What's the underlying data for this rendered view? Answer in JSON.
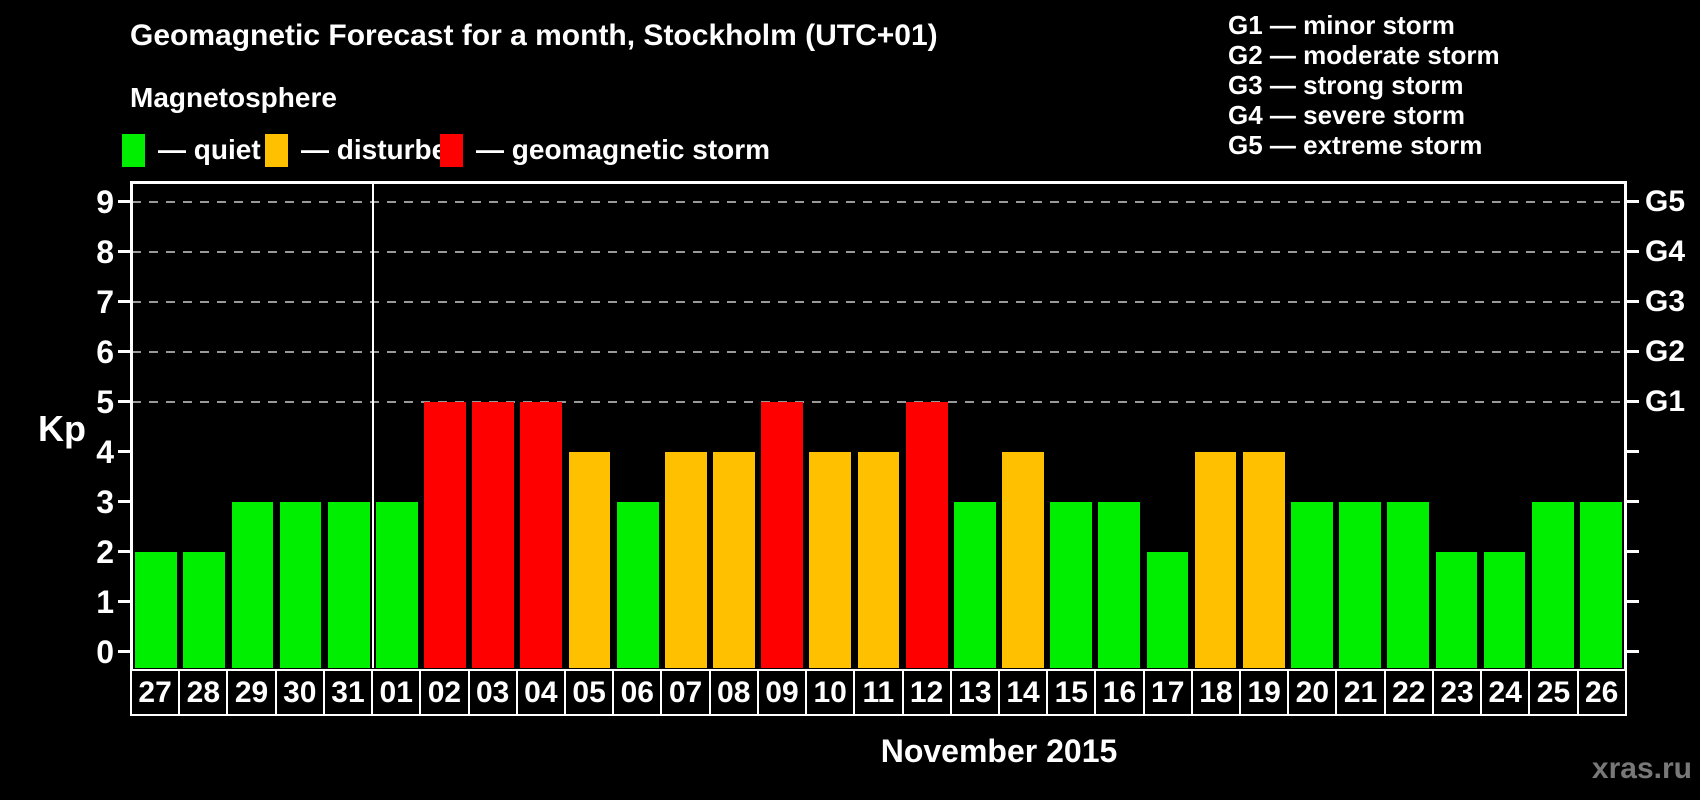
{
  "header": {
    "title": "Geomagnetic Forecast for a month, Stockholm (UTC+01)",
    "subtitle": "Magnetosphere"
  },
  "legend": {
    "items": [
      {
        "status": "quiet",
        "swatch_color": "#00EE00",
        "label": "— quiet"
      },
      {
        "status": "disturbed",
        "swatch_color": "#FFC000",
        "label": "— disturbed"
      },
      {
        "status": "storm",
        "swatch_color": "#FF0000",
        "label": "— geomagnetic storm"
      }
    ]
  },
  "g_scale_legend": [
    "G1 — minor storm",
    "G2 — moderate storm",
    "G3 — strong storm",
    "G4 — severe storm",
    "G5 — extreme storm"
  ],
  "watermark": "xras.ru",
  "chart_data": {
    "type": "bar",
    "title": "Geomagnetic Forecast for a month, Stockholm (UTC+01)",
    "xlabel": "November 2015",
    "ylabel": "Kp",
    "ylim": [
      0,
      9
    ],
    "yticks": [
      0,
      1,
      2,
      3,
      4,
      5,
      6,
      7,
      8,
      9
    ],
    "grid_values": [
      5,
      6,
      7,
      8,
      9
    ],
    "right_axis": [
      {
        "value": 5,
        "label": "G1"
      },
      {
        "value": 6,
        "label": "G2"
      },
      {
        "value": 7,
        "label": "G3"
      },
      {
        "value": 8,
        "label": "G4"
      },
      {
        "value": 9,
        "label": "G5"
      }
    ],
    "legend_position": "top",
    "grid": "dashed-horizontal",
    "month_boundary_index": 5,
    "categories": [
      "27",
      "28",
      "29",
      "30",
      "31",
      "01",
      "02",
      "03",
      "04",
      "05",
      "06",
      "07",
      "08",
      "09",
      "10",
      "11",
      "12",
      "13",
      "14",
      "15",
      "16",
      "17",
      "18",
      "19",
      "20",
      "21",
      "22",
      "23",
      "24",
      "25",
      "26"
    ],
    "values": [
      2,
      2,
      3,
      3,
      3,
      3,
      5,
      5,
      5,
      4,
      3,
      4,
      4,
      5,
      4,
      4,
      5,
      3,
      4,
      3,
      3,
      2,
      4,
      4,
      3,
      3,
      3,
      2,
      2,
      3,
      3
    ],
    "bars": [
      {
        "day": "27",
        "kp": 2,
        "status": "quiet"
      },
      {
        "day": "28",
        "kp": 2,
        "status": "quiet"
      },
      {
        "day": "29",
        "kp": 3,
        "status": "quiet"
      },
      {
        "day": "30",
        "kp": 3,
        "status": "quiet"
      },
      {
        "day": "31",
        "kp": 3,
        "status": "quiet"
      },
      {
        "day": "01",
        "kp": 3,
        "status": "quiet"
      },
      {
        "day": "02",
        "kp": 5,
        "status": "storm"
      },
      {
        "day": "03",
        "kp": 5,
        "status": "storm"
      },
      {
        "day": "04",
        "kp": 5,
        "status": "storm"
      },
      {
        "day": "05",
        "kp": 4,
        "status": "disturbed"
      },
      {
        "day": "06",
        "kp": 3,
        "status": "quiet"
      },
      {
        "day": "07",
        "kp": 4,
        "status": "disturbed"
      },
      {
        "day": "08",
        "kp": 4,
        "status": "disturbed"
      },
      {
        "day": "09",
        "kp": 5,
        "status": "storm"
      },
      {
        "day": "10",
        "kp": 4,
        "status": "disturbed"
      },
      {
        "day": "11",
        "kp": 4,
        "status": "disturbed"
      },
      {
        "day": "12",
        "kp": 5,
        "status": "storm"
      },
      {
        "day": "13",
        "kp": 3,
        "status": "quiet"
      },
      {
        "day": "14",
        "kp": 4,
        "status": "disturbed"
      },
      {
        "day": "15",
        "kp": 3,
        "status": "quiet"
      },
      {
        "day": "16",
        "kp": 3,
        "status": "quiet"
      },
      {
        "day": "17",
        "kp": 2,
        "status": "quiet"
      },
      {
        "day": "18",
        "kp": 4,
        "status": "disturbed"
      },
      {
        "day": "19",
        "kp": 4,
        "status": "disturbed"
      },
      {
        "day": "20",
        "kp": 3,
        "status": "quiet"
      },
      {
        "day": "21",
        "kp": 3,
        "status": "quiet"
      },
      {
        "day": "22",
        "kp": 3,
        "status": "quiet"
      },
      {
        "day": "23",
        "kp": 2,
        "status": "quiet"
      },
      {
        "day": "24",
        "kp": 2,
        "status": "quiet"
      },
      {
        "day": "25",
        "kp": 3,
        "status": "quiet"
      },
      {
        "day": "26",
        "kp": 3,
        "status": "quiet"
      }
    ]
  }
}
